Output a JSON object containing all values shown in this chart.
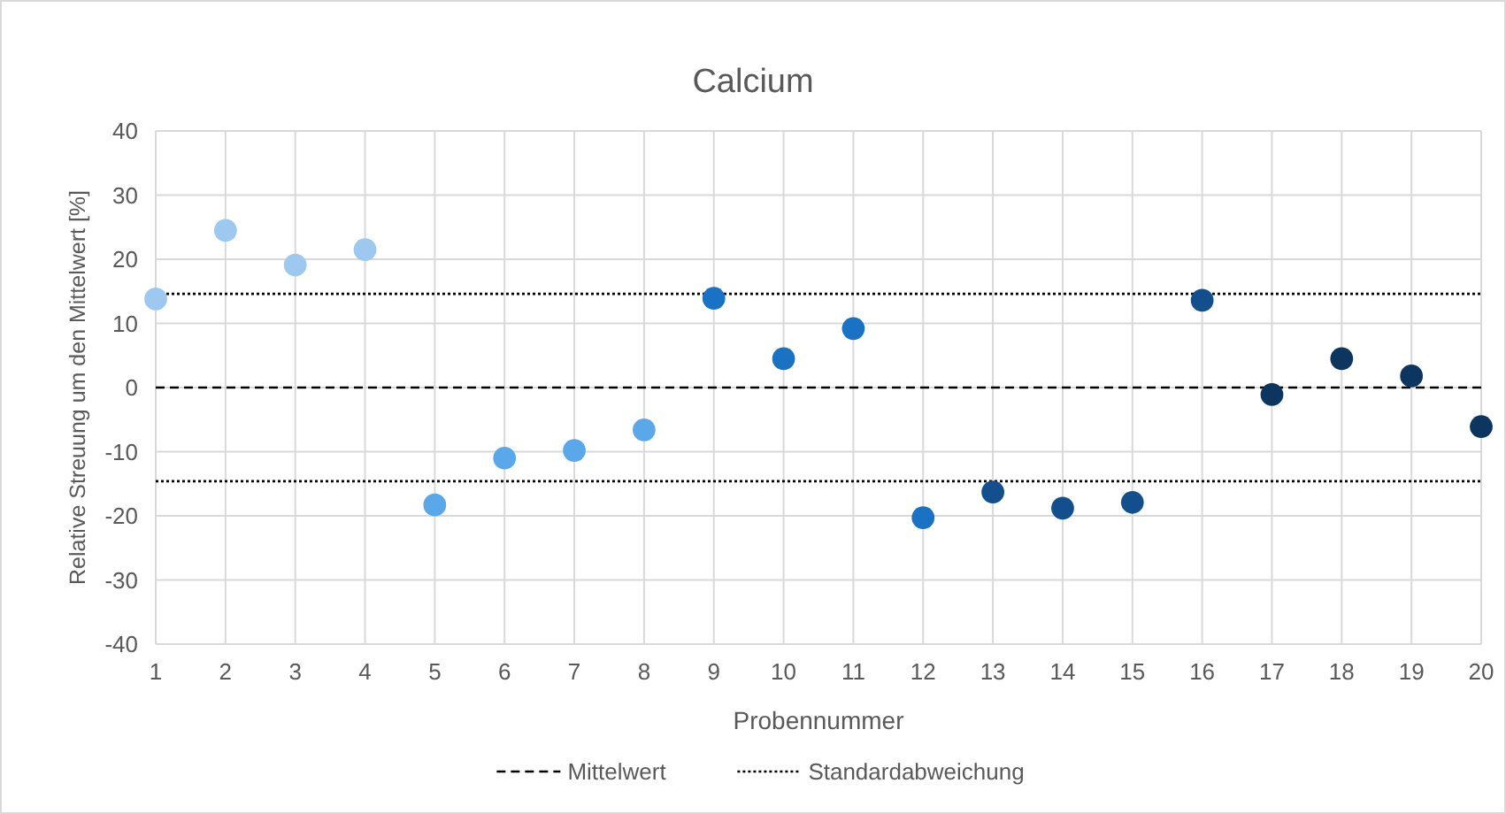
{
  "chart_data": {
    "type": "scatter",
    "title": "Calcium",
    "xlabel": "Probennummer",
    "ylabel": "Relative Streuung um den Mittelwert [%]",
    "x": [
      1,
      2,
      3,
      4,
      5,
      6,
      7,
      8,
      9,
      10,
      11,
      12,
      13,
      14,
      15,
      16,
      17,
      18,
      19,
      20
    ],
    "values": [
      13.8,
      24.5,
      19.1,
      21.5,
      -18.3,
      -11,
      -9.8,
      -6.6,
      13.9,
      4.5,
      9.2,
      -20.3,
      -16.3,
      -18.8,
      -17.9,
      13.6,
      -1.1,
      4.5,
      1.8,
      -6.1
    ],
    "colors": [
      "#9dc8f0",
      "#9dc8f0",
      "#9dc8f0",
      "#9dc8f0",
      "#5aa8ea",
      "#5aa8ea",
      "#5aa8ea",
      "#5aa8ea",
      "#1a72c4",
      "#1a72c4",
      "#1a72c4",
      "#1a72c4",
      "#124f8c",
      "#124f8c",
      "#124f8c",
      "#124f8c",
      "#0c3560",
      "#0c3560",
      "#0c3560",
      "#0c3560"
    ],
    "marker": "circle",
    "xlim": [
      1,
      20
    ],
    "xticks": [
      1,
      2,
      3,
      4,
      5,
      6,
      7,
      8,
      9,
      10,
      11,
      12,
      13,
      14,
      15,
      16,
      17,
      18,
      19,
      20
    ],
    "ylim": [
      -40,
      40
    ],
    "yticks": [
      -40,
      -30,
      -20,
      -10,
      0,
      10,
      20,
      30,
      40
    ],
    "grid": true,
    "legend": "bottom",
    "ref_lines": [
      {
        "axis": "y",
        "value": 0,
        "label": "Mittelwert",
        "color": "#000000",
        "line_style": "dashed"
      },
      {
        "axis": "y",
        "value": 14.6,
        "label": "Standardabweichung",
        "color": "#000000",
        "line_style": "dotted"
      },
      {
        "axis": "y",
        "value": -14.6,
        "color": "#000000",
        "line_style": "dotted"
      }
    ]
  }
}
